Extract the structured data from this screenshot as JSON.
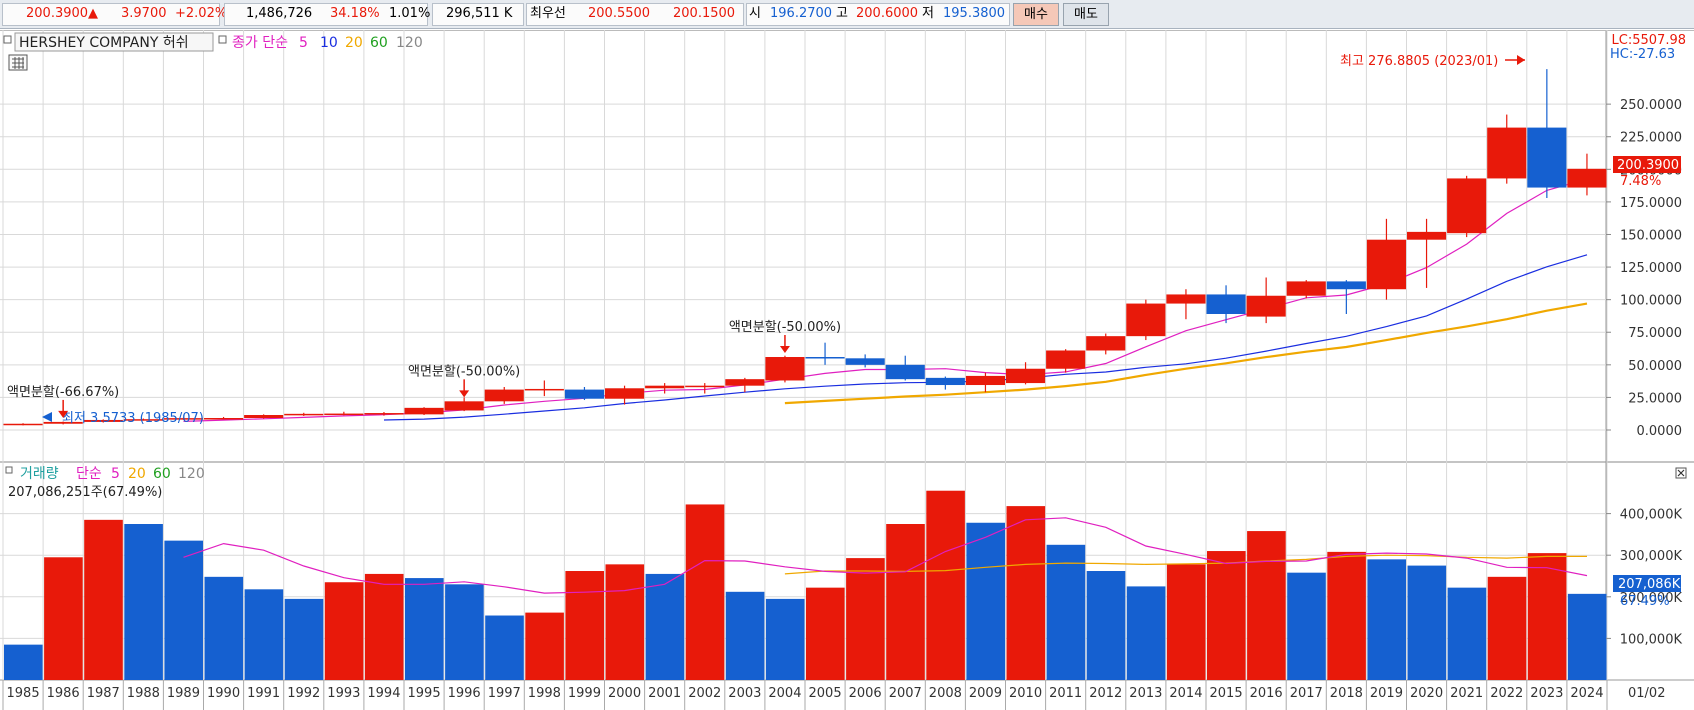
{
  "quote": {
    "price": "200.3900▲",
    "change": "3.9700",
    "change_pct": "+2.02%",
    "volume": "1,486,726",
    "volume_ratio": "34.18%",
    "turnover": "1.01%",
    "amount": "296,511 K",
    "best_quote_label": "최우선",
    "ask": "200.5500",
    "bid": "200.1500",
    "open_label": "시",
    "open": "196.2700",
    "high_label": "고",
    "high": "200.6000",
    "low_label": "저",
    "low": "195.3800",
    "buy_label": "매수",
    "sell_label": "매도"
  },
  "colors": {
    "up": "#e8190a",
    "down": "#1560d0",
    "ma5": "#e020c0",
    "ma10": "#1a2ee0",
    "ma20": "#f0a800",
    "ma60": "#20a020",
    "ma120": "#888888",
    "grid": "#d9d9d9",
    "axis_text": "#333333"
  },
  "price_panel": {
    "title": "HERSHEY COMPANY 허쉬",
    "ma_label": "종가 단순",
    "ma_periods": [
      "5",
      "10",
      "20",
      "60",
      "120"
    ],
    "lc": "LC:5507.98",
    "hc": "HC:-27.63",
    "current_price": "200.3900",
    "current_pct": "7.48%",
    "high_annotation": "최고 276.8805 (2023/01)",
    "low_annotation": "최저 3.5733 (1985/07)",
    "split_annotations": [
      {
        "text": "액면분할(-66.67%)",
        "year": "1986"
      },
      {
        "text": "액면분할(-50.00%)",
        "year": "1996"
      },
      {
        "text": "액면분할(-50.00%)",
        "year": "2004"
      }
    ]
  },
  "volume_panel": {
    "title": "거래량",
    "ma_label": "단순",
    "ma_periods": [
      "5",
      "20",
      "60",
      "120"
    ],
    "last_value_text": "207,086,251주(67.49%)",
    "current_volume": "207,086K",
    "current_pct": "67.49%"
  },
  "x_axis": {
    "last_label": "01/02"
  },
  "chart_data": [
    {
      "type": "candlestick",
      "title": "HERSHEY COMPANY 허쉬",
      "period": "yearly",
      "x": [
        "1985",
        "1986",
        "1987",
        "1988",
        "1989",
        "1990",
        "1991",
        "1992",
        "1993",
        "1994",
        "1995",
        "1996",
        "1997",
        "1998",
        "1999",
        "2000",
        "2001",
        "2002",
        "2003",
        "2004",
        "2005",
        "2006",
        "2007",
        "2008",
        "2009",
        "2010",
        "2011",
        "2012",
        "2013",
        "2014",
        "2015",
        "2016",
        "2017",
        "2018",
        "2019",
        "2020",
        "2021",
        "2022",
        "2023",
        "2024"
      ],
      "ohlc": [
        [
          4.5,
          5.2,
          3.5733,
          4.8
        ],
        [
          4.8,
          6.5,
          4.3,
          6.2
        ],
        [
          6.2,
          8.2,
          5.7,
          7.7
        ],
        [
          7.7,
          8.8,
          7.2,
          8.3
        ],
        [
          8.3,
          9.5,
          7.8,
          9.1
        ],
        [
          9.1,
          10.0,
          8.2,
          9.2
        ],
        [
          9.2,
          12.0,
          8.8,
          11.5
        ],
        [
          11.5,
          13.2,
          10.8,
          12.4
        ],
        [
          12.4,
          14.0,
          11.3,
          12.6
        ],
        [
          12.6,
          13.8,
          11.0,
          13.0
        ],
        [
          12.0,
          17.5,
          11.5,
          17.0
        ],
        [
          15.0,
          25.0,
          14.5,
          22.0
        ],
        [
          22.0,
          33.0,
          20.0,
          31.0
        ],
        [
          31.0,
          38.0,
          26.0,
          31.5
        ],
        [
          31.0,
          33.0,
          23.0,
          24.0
        ],
        [
          24.0,
          34.0,
          19.5,
          32.0
        ],
        [
          32.0,
          36.0,
          28.0,
          34.0
        ],
        [
          33.0,
          36.0,
          28.0,
          34.0
        ],
        [
          34.0,
          40.0,
          29.0,
          39.0
        ],
        [
          38.0,
          57.0,
          36.5,
          56.0
        ],
        [
          56.0,
          67.0,
          50.0,
          55.0
        ],
        [
          55.0,
          58.0,
          48.0,
          50.0
        ],
        [
          50.0,
          57.0,
          38.0,
          39.0
        ],
        [
          40.0,
          41.0,
          31.0,
          34.5
        ],
        [
          34.5,
          44.0,
          29.0,
          41.5
        ],
        [
          36.0,
          52.0,
          35.0,
          47.0
        ],
        [
          47.0,
          62.0,
          44.0,
          61.0
        ],
        [
          61.0,
          74.0,
          58.0,
          72.0
        ],
        [
          72.0,
          100.0,
          69.0,
          97.0
        ],
        [
          97.0,
          108.0,
          85.0,
          104.0
        ],
        [
          104.0,
          111.0,
          82.0,
          89.0
        ],
        [
          87.0,
          117.0,
          82.0,
          103.0
        ],
        [
          103.0,
          115.0,
          101.0,
          114.0
        ],
        [
          114.0,
          115.0,
          89.0,
          108.0
        ],
        [
          108.0,
          162.0,
          100.0,
          146.0
        ],
        [
          146.0,
          162.0,
          109.0,
          152.0
        ],
        [
          151.0,
          195.0,
          148.0,
          193.0
        ],
        [
          193.0,
          242.0,
          189.0,
          232.0
        ],
        [
          232.0,
          276.8805,
          178.0,
          186.0
        ],
        [
          186.0,
          212.0,
          180.0,
          200.39
        ]
      ],
      "ma5": [
        null,
        null,
        null,
        null,
        6.6,
        7.6,
        8.6,
        9.7,
        10.8,
        11.7,
        13.1,
        15.4,
        19.2,
        22.0,
        24.3,
        28.1,
        30.5,
        31.1,
        34.6,
        39.0,
        43.4,
        46.4,
        46.4,
        47.0,
        44.0,
        42.4,
        44.6,
        51.0,
        63.8,
        76.2,
        84.6,
        93.0,
        101.4,
        103.6,
        112.0,
        124.6,
        142.6,
        166.2,
        183.8,
        192.6
      ],
      "ma10": [
        null,
        null,
        null,
        null,
        null,
        null,
        null,
        null,
        null,
        7.7,
        8.4,
        9.9,
        12.1,
        14.6,
        17.0,
        20.3,
        23.0,
        26.1,
        29.0,
        31.6,
        33.6,
        35.3,
        36.3,
        36.6,
        37.6,
        39.8,
        42.7,
        44.5,
        48.1,
        50.8,
        55.1,
        60.5,
        66.4,
        71.9,
        79.3,
        87.5,
        100.4,
        114.1,
        125.2,
        134.4
      ],
      "ma20": [
        null,
        null,
        null,
        null,
        null,
        null,
        null,
        null,
        null,
        null,
        null,
        null,
        null,
        null,
        null,
        null,
        null,
        null,
        null,
        20.6,
        22.3,
        24.0,
        25.7,
        27.1,
        29.0,
        31.0,
        33.7,
        37.0,
        42.3,
        47.0,
        51.2,
        55.9,
        60.1,
        63.7,
        69.0,
        74.5,
        79.5,
        85.0,
        91.5,
        97.0
      ],
      "y_range": [
        0,
        290
      ],
      "y_ticks": [
        "0.0000",
        "25.0000",
        "50.0000",
        "75.0000",
        "100.0000",
        "125.0000",
        "150.0000",
        "175.0000",
        "200.0000",
        "225.0000",
        "250.0000"
      ],
      "colors": {
        "up": "#e8190a",
        "down": "#1560d0"
      }
    },
    {
      "type": "bar",
      "title": "거래량",
      "unit": "K shares",
      "x": [
        "1985",
        "1986",
        "1987",
        "1988",
        "1989",
        "1990",
        "1991",
        "1992",
        "1993",
        "1994",
        "1995",
        "1996",
        "1997",
        "1998",
        "1999",
        "2000",
        "2001",
        "2002",
        "2003",
        "2004",
        "2005",
        "2006",
        "2007",
        "2008",
        "2009",
        "2010",
        "2011",
        "2012",
        "2013",
        "2014",
        "2015",
        "2016",
        "2017",
        "2018",
        "2019",
        "2020",
        "2021",
        "2022",
        "2023",
        "2024"
      ],
      "values": [
        85000,
        295000,
        385000,
        375000,
        335000,
        248000,
        218000,
        195000,
        235000,
        255000,
        245000,
        230000,
        155000,
        162000,
        262000,
        278000,
        255000,
        422000,
        212000,
        195000,
        222000,
        293000,
        375000,
        455000,
        378000,
        418000,
        325000,
        262000,
        225000,
        278000,
        310000,
        358000,
        258000,
        308000,
        290000,
        275000,
        222000,
        248000,
        305000,
        207086
      ],
      "up_down": [
        "down",
        "up",
        "up",
        "down",
        "down",
        "down",
        "down",
        "down",
        "up",
        "up",
        "down",
        "down",
        "down",
        "up",
        "up",
        "up",
        "down",
        "up",
        "down",
        "down",
        "up",
        "up",
        "up",
        "up",
        "down",
        "up",
        "down",
        "down",
        "down",
        "up",
        "up",
        "up",
        "down",
        "up",
        "down",
        "down",
        "down",
        "up",
        "up",
        "down"
      ],
      "ma5": [
        null,
        null,
        null,
        null,
        295000,
        328000,
        312000,
        274000,
        246000,
        230000,
        230000,
        236000,
        224000,
        209000,
        211000,
        215000,
        230000,
        287000,
        286000,
        272000,
        261000,
        257000,
        260000,
        309000,
        343000,
        385000,
        390000,
        367000,
        322000,
        302000,
        280000,
        285000,
        286000,
        302000,
        305000,
        303000,
        293000,
        271000,
        270000,
        251000
      ],
      "ma20": [
        null,
        null,
        null,
        null,
        null,
        null,
        null,
        null,
        null,
        null,
        null,
        null,
        null,
        null,
        null,
        null,
        null,
        null,
        null,
        255000,
        262000,
        262000,
        261000,
        263000,
        271000,
        278000,
        281000,
        280000,
        278000,
        279000,
        281000,
        286000,
        290000,
        297000,
        300000,
        299000,
        295000,
        293000,
        297000,
        297000
      ],
      "y_range": [
        0,
        500000
      ],
      "y_ticks": [
        "100,000K",
        "200,000K",
        "300,000K",
        "400,000K"
      ]
    }
  ]
}
